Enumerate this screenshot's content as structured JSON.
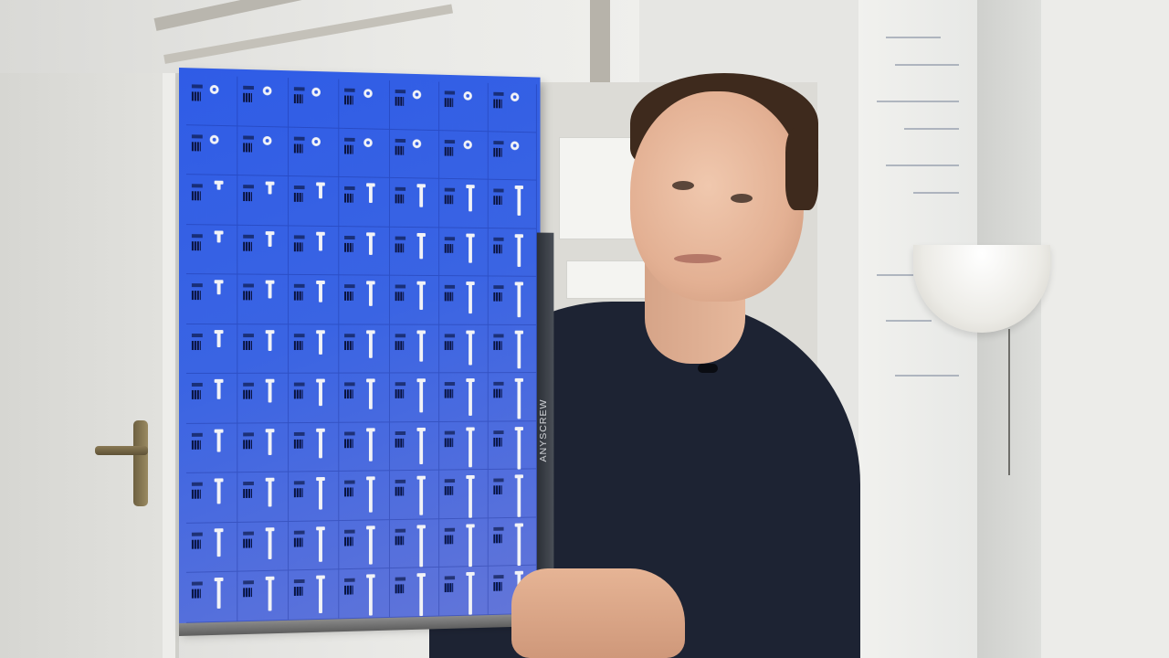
{
  "panel": {
    "brand": "ANYSCREW",
    "columns": 7,
    "rows": 11
  },
  "colors": {
    "panel_blue": "#3460e6",
    "sweater": "#1d2333",
    "rail": "#2b2f36"
  }
}
